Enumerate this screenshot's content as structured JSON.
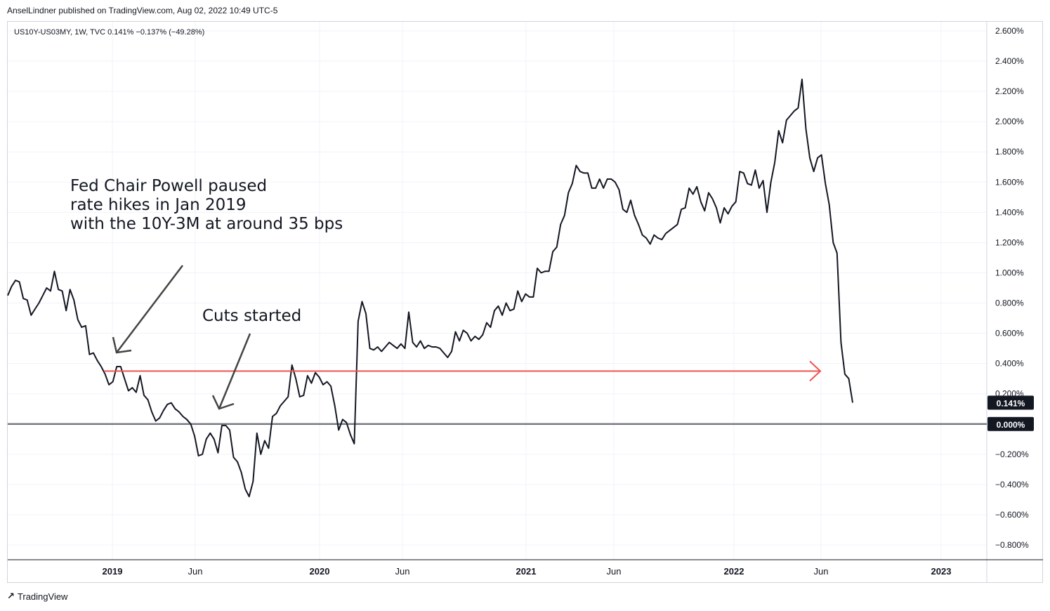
{
  "header": {
    "text": "AnselLindner published on TradingView.com, Aug 02, 2022 10:49 UTC-5"
  },
  "legend": {
    "text": "US10Y-US03MY, 1W, TVC  0.141%  −0.137% (−49.28%)"
  },
  "annotations": {
    "powell_line1": "Fed Chair Powell paused",
    "powell_line2": "rate hikes in Jan 2019",
    "powell_line3": "with the 10Y-3M at around 35 bps",
    "cuts": "Cuts started"
  },
  "footer": {
    "brand": "TradingView",
    "logo_icon": "tradingview-logo-icon"
  },
  "colors": {
    "line": "#131722",
    "hline": "#ef5350",
    "zero": "#787b86",
    "badge": "#131722"
  },
  "chart_data": {
    "type": "line",
    "x_tick_labels": [
      "2019",
      "Jun",
      "2020",
      "Jun",
      "2021",
      "Jun",
      "2022",
      "Jun",
      "2023"
    ],
    "y_tick_labels": [
      "2.600%",
      "2.400%",
      "2.200%",
      "2.000%",
      "1.800%",
      "1.600%",
      "1.400%",
      "1.200%",
      "1.000%",
      "0.800%",
      "0.600%",
      "0.400%",
      "0.200%",
      "−0.200%",
      "−0.400%",
      "−0.600%",
      "−0.800%"
    ],
    "y_tick_values": [
      2.6,
      2.4,
      2.2,
      2.0,
      1.8,
      1.6,
      1.4,
      1.2,
      1.0,
      0.8,
      0.6,
      0.4,
      0.2,
      -0.2,
      -0.4,
      -0.6,
      -0.8
    ],
    "ylim": [
      -0.9,
      2.72
    ],
    "last_value_label": "0.141%",
    "zero_label": "0.000%",
    "last_value": 0.141,
    "zero_value": 0.0,
    "horizontal_level": 0.35,
    "series": [
      {
        "values": [
          0.85,
          0.91,
          0.95,
          0.94,
          0.83,
          0.82,
          0.72,
          0.76,
          0.8,
          0.85,
          0.9,
          0.88,
          1.01,
          0.89,
          0.88,
          0.75,
          0.89,
          0.82,
          0.69,
          0.64,
          0.65,
          0.46,
          0.47,
          0.42,
          0.38,
          0.33,
          0.26,
          0.28,
          0.38,
          0.38,
          0.3,
          0.22,
          0.24,
          0.21,
          0.32,
          0.19,
          0.16,
          0.08,
          0.02,
          0.04,
          0.09,
          0.13,
          0.14,
          0.1,
          0.08,
          0.05,
          0.03,
          0.0,
          -0.08,
          -0.21,
          -0.2,
          -0.1,
          -0.06,
          -0.1,
          -0.19,
          -0.01,
          -0.01,
          -0.04,
          -0.22,
          -0.25,
          -0.32,
          -0.43,
          -0.48,
          -0.38,
          -0.06,
          -0.2,
          -0.11,
          -0.16,
          0.05,
          0.07,
          0.12,
          0.15,
          0.18,
          0.39,
          0.3,
          0.18,
          0.19,
          0.32,
          0.27,
          0.34,
          0.31,
          0.26,
          0.28,
          0.25,
          0.12,
          -0.04,
          0.03,
          0.01,
          -0.07,
          -0.13,
          0.68,
          0.81,
          0.73,
          0.5,
          0.49,
          0.51,
          0.48,
          0.51,
          0.54,
          0.52,
          0.5,
          0.53,
          0.5,
          0.74,
          0.54,
          0.51,
          0.55,
          0.5,
          0.52,
          0.51,
          0.51,
          0.5,
          0.47,
          0.44,
          0.48,
          0.61,
          0.55,
          0.62,
          0.6,
          0.55,
          0.58,
          0.56,
          0.59,
          0.67,
          0.64,
          0.75,
          0.78,
          0.72,
          0.8,
          0.75,
          0.76,
          0.88,
          0.81,
          0.86,
          0.84,
          0.84,
          1.03,
          1.0,
          1.01,
          1.01,
          1.14,
          1.17,
          1.32,
          1.38,
          1.53,
          1.59,
          1.71,
          1.67,
          1.66,
          1.66,
          1.56,
          1.56,
          1.62,
          1.56,
          1.62,
          1.62,
          1.6,
          1.55,
          1.42,
          1.4,
          1.48,
          1.38,
          1.32,
          1.25,
          1.23,
          1.19,
          1.25,
          1.23,
          1.22,
          1.26,
          1.28,
          1.3,
          1.32,
          1.42,
          1.43,
          1.56,
          1.52,
          1.57,
          1.47,
          1.41,
          1.53,
          1.49,
          1.43,
          1.33,
          1.43,
          1.39,
          1.44,
          1.47,
          1.67,
          1.66,
          1.59,
          1.58,
          1.68,
          1.56,
          1.61,
          1.4,
          1.6,
          1.73,
          1.94,
          1.86,
          2.01,
          2.04,
          2.07,
          2.09,
          2.28,
          1.95,
          1.76,
          1.67,
          1.76,
          1.78,
          1.59,
          1.45,
          1.2,
          1.13,
          0.54,
          0.33,
          0.3,
          0.141
        ]
      }
    ]
  }
}
